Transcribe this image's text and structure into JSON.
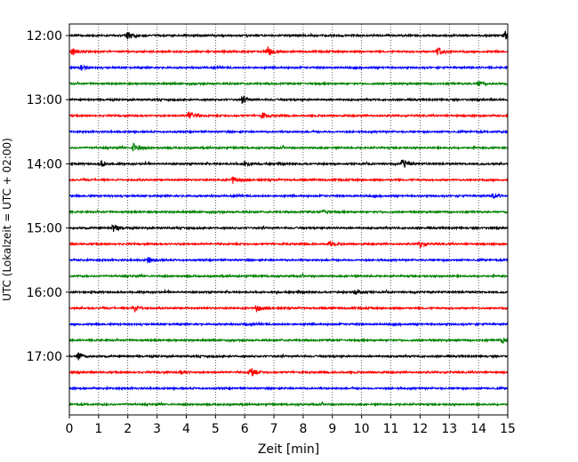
{
  "chart_data": {
    "type": "line",
    "title": "",
    "xlabel": "Zeit  [min]",
    "ylabel": "UTC (Lokalzeit = UTC + 02:00)",
    "xlim": [
      0,
      15
    ],
    "x_ticks": [
      "0",
      "1",
      "2",
      "3",
      "4",
      "5",
      "6",
      "7",
      "8",
      "9",
      "10",
      "11",
      "12",
      "13",
      "14",
      "15"
    ],
    "y_ticks": [
      "12:00",
      "13:00",
      "14:00",
      "15:00",
      "16:00",
      "17:00"
    ],
    "trace_start": "12:00",
    "trace_end": "17:45",
    "trace_interval_min": 15,
    "trace_colors": [
      "#000000",
      "#ff0000",
      "#0000ff",
      "#008000"
    ],
    "grid": "vertical dotted lines at each minute",
    "events": [
      {
        "trace": 0,
        "t": 2.0,
        "amp": 1.0
      },
      {
        "trace": 0,
        "t": 14.9,
        "amp": 0.9
      },
      {
        "trace": 1,
        "t": 6.8,
        "amp": 1.0
      },
      {
        "trace": 1,
        "t": 12.6,
        "amp": 1.0
      },
      {
        "trace": 1,
        "t": 0.1,
        "amp": 0.7
      },
      {
        "trace": 2,
        "t": 0.4,
        "amp": 0.6
      },
      {
        "trace": 3,
        "t": 14.0,
        "amp": 0.5
      },
      {
        "trace": 4,
        "t": 5.9,
        "amp": 0.8
      },
      {
        "trace": 5,
        "t": 4.1,
        "amp": 1.0
      },
      {
        "trace": 5,
        "t": 6.6,
        "amp": 0.5
      },
      {
        "trace": 7,
        "t": 2.2,
        "amp": 0.9
      },
      {
        "trace": 8,
        "t": 11.4,
        "amp": 1.0
      },
      {
        "trace": 8,
        "t": 1.1,
        "amp": 0.7
      },
      {
        "trace": 8,
        "t": 6.0,
        "amp": 0.6
      },
      {
        "trace": 9,
        "t": 5.6,
        "amp": 0.7
      },
      {
        "trace": 10,
        "t": 14.5,
        "amp": 0.5
      },
      {
        "trace": 11,
        "t": 8.7,
        "amp": 0.4
      },
      {
        "trace": 12,
        "t": 1.5,
        "amp": 0.9
      },
      {
        "trace": 13,
        "t": 12.0,
        "amp": 0.8
      },
      {
        "trace": 13,
        "t": 8.9,
        "amp": 0.5
      },
      {
        "trace": 14,
        "t": 2.7,
        "amp": 0.6
      },
      {
        "trace": 16,
        "t": 9.8,
        "amp": 0.6
      },
      {
        "trace": 17,
        "t": 2.2,
        "amp": 0.8
      },
      {
        "trace": 17,
        "t": 6.4,
        "amp": 0.8
      },
      {
        "trace": 18,
        "t": 6.0,
        "amp": 0.3
      },
      {
        "trace": 19,
        "t": 14.8,
        "amp": 0.5
      },
      {
        "trace": 20,
        "t": 0.3,
        "amp": 0.9
      },
      {
        "trace": 21,
        "t": 6.2,
        "amp": 1.0
      },
      {
        "trace": 21,
        "t": 3.8,
        "amp": 0.5
      }
    ]
  }
}
